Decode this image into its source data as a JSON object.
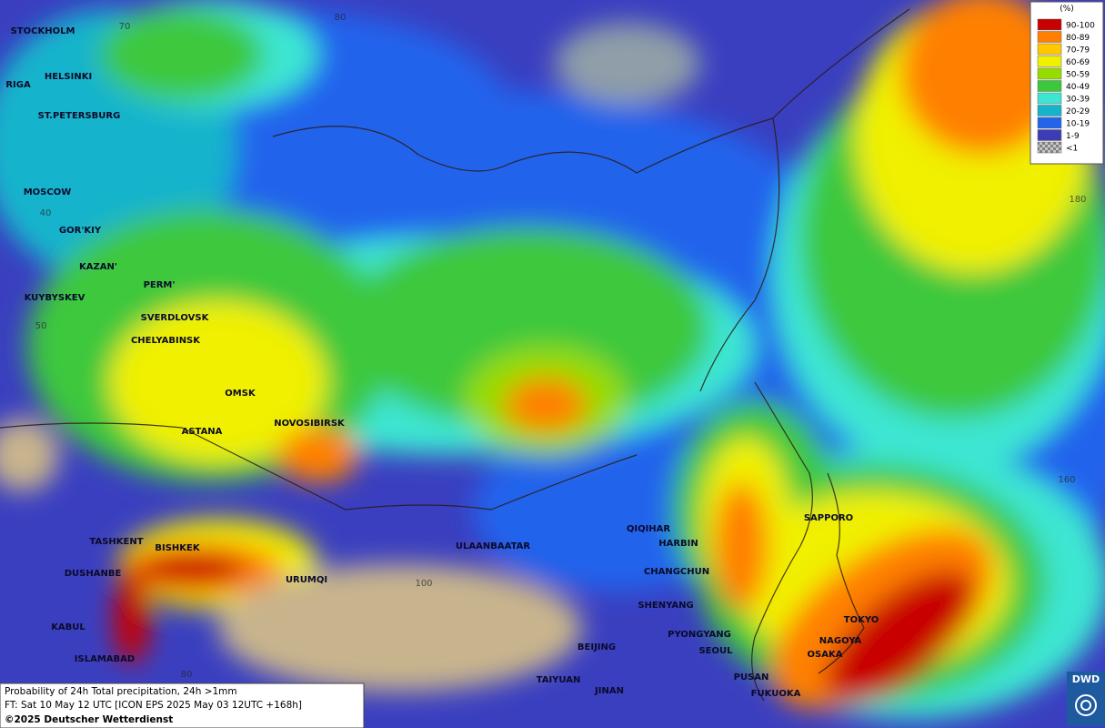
{
  "map": {
    "cities": [
      "STOCKHOLM",
      "HELSINKI",
      "RIGA",
      "ST.PETERSBURG",
      "MOSCOW",
      "GOR'KIY",
      "KAZAN'",
      "PERM'",
      "KUYBYSKEV",
      "SVERDLOVSK",
      "CHELYABINSK",
      "OMSK",
      "ASTANA",
      "NOVOSIBIRSK",
      "TASHKENT",
      "BISHKEK",
      "DUSHANBE",
      "URUMQI",
      "ULAANBAATAR",
      "QIQIHAR",
      "HARBIN",
      "CHANGCHUN",
      "SHENYANG",
      "PYONGYANG",
      "SEOUL",
      "BEIJING",
      "TAIYUAN",
      "JINAN",
      "PUSAN",
      "FUKUOKA",
      "OSAKA",
      "NAGOYA",
      "TOKYO",
      "SAPPORO",
      "KABUL",
      "ISLAMABAD"
    ],
    "graticule_labels": [
      "80",
      "70",
      "40",
      "50",
      "180",
      "160",
      "100",
      "80"
    ]
  },
  "legend": {
    "title": "(%)",
    "items": [
      {
        "label": "90-100",
        "color": "#c80000"
      },
      {
        "label": "80-89",
        "color": "#ff8000"
      },
      {
        "label": "70-79",
        "color": "#ffc800"
      },
      {
        "label": "60-69",
        "color": "#f0f000"
      },
      {
        "label": "50-59",
        "color": "#96dc00"
      },
      {
        "label": "40-49",
        "color": "#3cc83c"
      },
      {
        "label": "30-39",
        "color": "#3ce6d2"
      },
      {
        "label": "20-29",
        "color": "#14b4cc"
      },
      {
        "label": "10-19",
        "color": "#2364ec"
      },
      {
        "label": "1-9",
        "color": "#3c3cb4"
      },
      {
        "label": "<1",
        "color": "#a0a0a0"
      }
    ]
  },
  "footer": {
    "line1": "Probability of 24h Total precipitation, 24h >1mm",
    "line2": "FT: Sat 10 May 12 UTC [ICON EPS 2025 May 03 12UTC +168h]",
    "copyright": "©2025 Deutscher Wetterdienst"
  },
  "logo": "DWD"
}
